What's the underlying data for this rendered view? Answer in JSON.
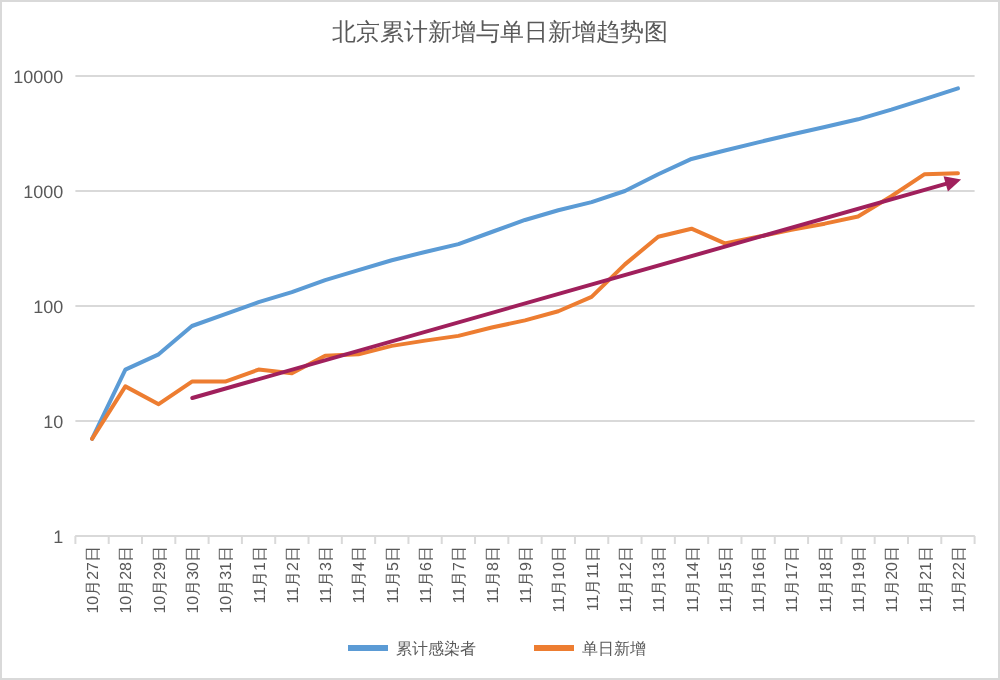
{
  "chart_data": {
    "type": "line",
    "title": "北京累计新增与单日新增趋势图",
    "categories": [
      "10月27日",
      "10月28日",
      "10月29日",
      "10月30日",
      "10月31日",
      "11月1日",
      "11月2日",
      "11月3日",
      "11月4日",
      "11月5日",
      "11月6日",
      "11月7日",
      "11月8日",
      "11月9日",
      "11月10日",
      "11月11日",
      "11月12日",
      "11月13日",
      "11月14日",
      "11月15日",
      "11月16日",
      "11月17日",
      "11月18日",
      "11月19日",
      "11月20日",
      "11月21日",
      "11月22日"
    ],
    "series": [
      {
        "name": "累计感染者",
        "color": "#5b9bd5",
        "values": [
          7,
          28,
          38,
          67,
          85,
          108,
          132,
          168,
          205,
          250,
          295,
          345,
          440,
          560,
          680,
          800,
          1000,
          1400,
          1900,
          2250,
          2650,
          3100,
          3600,
          4200,
          5100,
          6300,
          7800
        ]
      },
      {
        "name": "单日新增",
        "color": "#ed7d31",
        "values": [
          7,
          20,
          14,
          22,
          22,
          28,
          26,
          37,
          38,
          45,
          50,
          55,
          65,
          75,
          90,
          120,
          230,
          400,
          470,
          350,
          400,
          460,
          520,
          600,
          900,
          1400,
          1430
        ]
      }
    ],
    "log": true,
    "ylim": [
      1,
      10000
    ],
    "yticks": [
      1,
      10,
      100,
      1000,
      10000
    ],
    "grid": "y",
    "legend": "bottom"
  }
}
